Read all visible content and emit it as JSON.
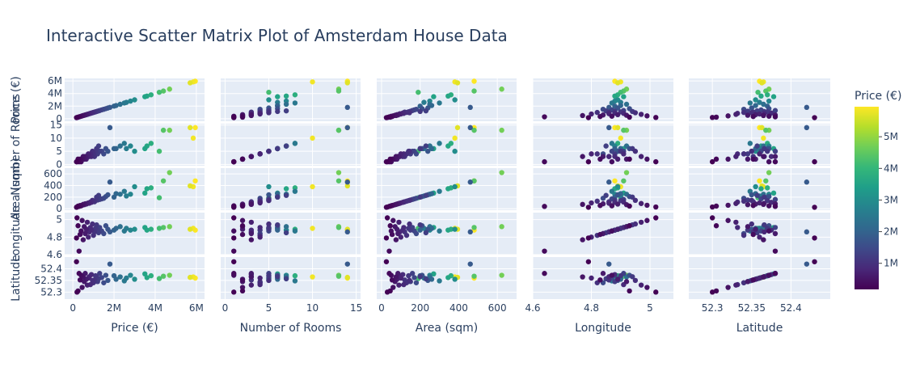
{
  "chart_data": {
    "type": "scatter",
    "title": "Interactive Scatter Matrix Plot of Amsterdam House Data",
    "dimensions": [
      {
        "key": "price",
        "label": "Price (€)",
        "range": [
          -400000,
          6400000
        ],
        "ticks": [
          {
            "v": 0,
            "t": "0"
          },
          {
            "v": 2000000,
            "t": "2M"
          },
          {
            "v": 4000000,
            "t": "4M"
          },
          {
            "v": 6000000,
            "t": "6M"
          }
        ]
      },
      {
        "key": "rooms",
        "label": "Number of Rooms",
        "range": [
          -0.5,
          15.5
        ],
        "ticks": [
          {
            "v": 0,
            "t": "0"
          },
          {
            "v": 5,
            "t": "5"
          },
          {
            "v": 10,
            "t": "10"
          },
          {
            "v": 15,
            "t": "15"
          }
        ]
      },
      {
        "key": "area",
        "label": "Area (sqm)",
        "range": [
          -25,
          700
        ],
        "ticks": [
          {
            "v": 0,
            "t": "0"
          },
          {
            "v": 200,
            "t": "200"
          },
          {
            "v": 400,
            "t": "400"
          },
          {
            "v": 600,
            "t": "600"
          }
        ]
      },
      {
        "key": "lon",
        "label": "Longitude",
        "range": [
          4.6,
          5.08
        ],
        "ticks": [
          {
            "v": 4.6,
            "t": "4.6"
          },
          {
            "v": 4.8,
            "t": "4.8"
          },
          {
            "v": 5,
            "t": "5"
          }
        ]
      },
      {
        "key": "lat",
        "label": "Latitude",
        "range": [
          52.27,
          52.45
        ],
        "ticks": [
          {
            "v": 52.3,
            "t": "52.3"
          },
          {
            "v": 52.35,
            "t": "52.35"
          },
          {
            "v": 52.4,
            "t": "52.4"
          }
        ]
      }
    ],
    "color": {
      "title": "Price (€)",
      "colorscale": "viridis",
      "range": [
        175000,
        5950000
      ],
      "ticks": [
        {
          "v": 1000000,
          "t": "1M"
        },
        {
          "v": 2000000,
          "t": "2M"
        },
        {
          "v": 3000000,
          "t": "3M"
        },
        {
          "v": 4000000,
          "t": "4M"
        },
        {
          "v": 5000000,
          "t": "5M"
        }
      ]
    },
    "points": [
      {
        "price": 5950000,
        "rooms": 14,
        "area": 480,
        "lon": 4.88,
        "lat": 52.36
      },
      {
        "price": 5850000,
        "rooms": 10,
        "area": 380,
        "lon": 4.9,
        "lat": 52.365
      },
      {
        "price": 5700000,
        "rooms": 14,
        "area": 394,
        "lon": 4.89,
        "lat": 52.363
      },
      {
        "price": 4700000,
        "rooms": 13,
        "area": 623,
        "lon": 4.92,
        "lat": 52.372
      },
      {
        "price": 4400000,
        "rooms": 13,
        "area": 480,
        "lon": 4.91,
        "lat": 52.368
      },
      {
        "price": 4200000,
        "rooms": 5,
        "area": 190,
        "lon": 4.9,
        "lat": 52.358
      },
      {
        "price": 3800000,
        "rooms": 8,
        "area": 360,
        "lon": 4.89,
        "lat": 52.37
      },
      {
        "price": 3600000,
        "rooms": 7,
        "area": 345,
        "lon": 4.88,
        "lat": 52.362
      },
      {
        "price": 3500000,
        "rooms": 6,
        "area": 270,
        "lon": 4.91,
        "lat": 52.378
      },
      {
        "price": 3000000,
        "rooms": 5,
        "area": 380,
        "lon": 4.89,
        "lat": 52.355
      },
      {
        "price": 2800000,
        "rooms": 7,
        "area": 250,
        "lon": 4.88,
        "lat": 52.372
      },
      {
        "price": 2600000,
        "rooms": 6,
        "area": 220,
        "lon": 4.9,
        "lat": 52.36
      },
      {
        "price": 2500000,
        "rooms": 8,
        "area": 300,
        "lon": 4.87,
        "lat": 52.348
      },
      {
        "price": 2300000,
        "rooms": 7,
        "area": 250,
        "lon": 4.92,
        "lat": 52.365
      },
      {
        "price": 2100000,
        "rooms": 6,
        "area": 260,
        "lon": 4.9,
        "lat": 52.355
      },
      {
        "price": 2000000,
        "rooms": 6,
        "area": 200,
        "lon": 4.88,
        "lat": 52.37
      },
      {
        "price": 1800000,
        "rooms": 14,
        "area": 460,
        "lon": 4.86,
        "lat": 52.42
      },
      {
        "price": 1700000,
        "rooms": 5,
        "area": 240,
        "lon": 4.89,
        "lat": 52.35
      },
      {
        "price": 1600000,
        "rooms": 6,
        "area": 210,
        "lon": 4.93,
        "lat": 52.372
      },
      {
        "price": 1500000,
        "rooms": 4,
        "area": 180,
        "lon": 4.84,
        "lat": 52.34
      },
      {
        "price": 1400000,
        "rooms": 5,
        "area": 170,
        "lon": 4.87,
        "lat": 52.362
      },
      {
        "price": 1300000,
        "rooms": 5,
        "area": 160,
        "lon": 4.91,
        "lat": 52.38
      },
      {
        "price": 1250000,
        "rooms": 7,
        "area": 230,
        "lon": 4.85,
        "lat": 52.357
      },
      {
        "price": 1200000,
        "rooms": 4,
        "area": 150,
        "lon": 4.88,
        "lat": 52.345
      },
      {
        "price": 1150000,
        "rooms": 6,
        "area": 200,
        "lon": 4.94,
        "lat": 52.366
      },
      {
        "price": 1100000,
        "rooms": 5,
        "area": 140,
        "lon": 4.9,
        "lat": 52.37
      },
      {
        "price": 1050000,
        "rooms": 3,
        "area": 120,
        "lon": 4.86,
        "lat": 52.352
      },
      {
        "price": 1000000,
        "rooms": 4,
        "area": 130,
        "lon": 4.82,
        "lat": 52.34
      },
      {
        "price": 950000,
        "rooms": 5,
        "area": 145,
        "lon": 4.95,
        "lat": 52.35
      },
      {
        "price": 900000,
        "rooms": 3,
        "area": 110,
        "lon": 4.88,
        "lat": 52.375
      },
      {
        "price": 850000,
        "rooms": 4,
        "area": 115,
        "lon": 4.91,
        "lat": 52.332
      },
      {
        "price": 800000,
        "rooms": 3,
        "area": 95,
        "lon": 4.86,
        "lat": 52.366
      },
      {
        "price": 750000,
        "rooms": 4,
        "area": 100,
        "lon": 4.8,
        "lat": 52.36
      },
      {
        "price": 700000,
        "rooms": 3,
        "area": 90,
        "lon": 4.97,
        "lat": 52.33
      },
      {
        "price": 650000,
        "rooms": 2,
        "area": 80,
        "lon": 4.89,
        "lat": 52.355
      },
      {
        "price": 600000,
        "rooms": 3,
        "area": 85,
        "lon": 4.84,
        "lat": 52.38
      },
      {
        "price": 550000,
        "rooms": 2,
        "area": 70,
        "lon": 4.92,
        "lat": 52.345
      },
      {
        "price": 500000,
        "rooms": 3,
        "area": 75,
        "lon": 4.77,
        "lat": 52.365
      },
      {
        "price": 450000,
        "rooms": 2,
        "area": 60,
        "lon": 4.99,
        "lat": 52.32
      },
      {
        "price": 400000,
        "rooms": 1,
        "area": 50,
        "lon": 4.87,
        "lat": 52.372
      },
      {
        "price": 350000,
        "rooms": 2,
        "area": 55,
        "lon": 4.83,
        "lat": 52.352
      },
      {
        "price": 300000,
        "rooms": 1,
        "area": 40,
        "lon": 4.64,
        "lat": 52.38
      },
      {
        "price": 250000,
        "rooms": 2,
        "area": 45,
        "lon": 4.93,
        "lat": 52.305
      },
      {
        "price": 200000,
        "rooms": 1,
        "area": 30,
        "lon": 5.02,
        "lat": 52.3
      },
      {
        "price": 175000,
        "rooms": 1,
        "area": 25,
        "lon": 4.79,
        "lat": 52.43
      }
    ]
  }
}
